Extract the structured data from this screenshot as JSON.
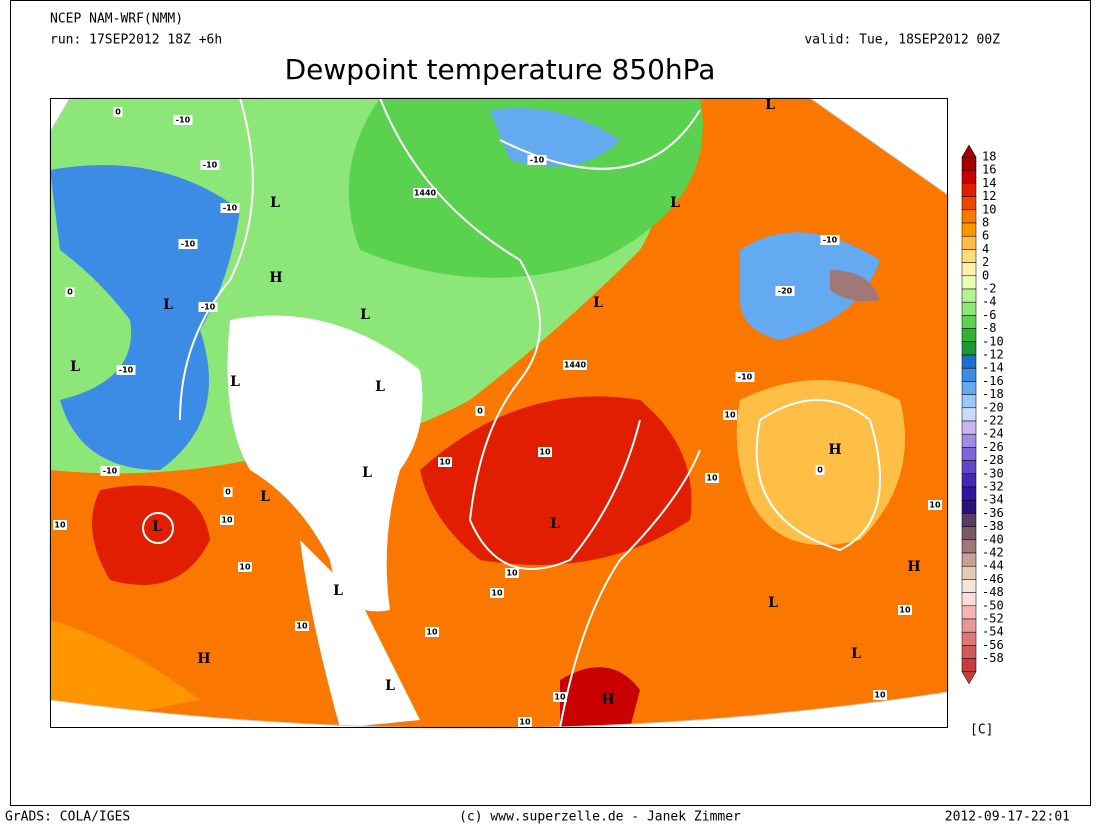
{
  "header": {
    "model": "NCEP NAM-WRF(NMM)",
    "run": "run: 17SEP2012 18Z +6h",
    "valid": "valid: Tue, 18SEP2012 00Z",
    "title": "Dewpoint temperature 850hPa"
  },
  "colorbar": {
    "unit": "[C]",
    "levels": [
      18,
      16,
      14,
      12,
      10,
      8,
      6,
      4,
      2,
      0,
      -2,
      -4,
      -6,
      -8,
      -10,
      -12,
      -14,
      -16,
      -18,
      -20,
      -22,
      -24,
      -26,
      -28,
      -30,
      -32,
      -34,
      -36,
      -38,
      -40,
      -42,
      -44,
      -46,
      -48,
      -50,
      -52,
      -54,
      -56,
      -58
    ],
    "colors": [
      "#a50000",
      "#c80000",
      "#e11e00",
      "#f04600",
      "#fa7800",
      "#ff9600",
      "#ffbe46",
      "#ffdc78",
      "#fff0aa",
      "#e6ffb4",
      "#b4f096",
      "#8ce678",
      "#5ad250",
      "#32b432",
      "#1e9632",
      "#1e6ed2",
      "#3c8ce6",
      "#64aaf0",
      "#96c8fa",
      "#c8dcfa",
      "#c8b4f0",
      "#a08ce6",
      "#8264dc",
      "#6446c8",
      "#4628b4",
      "#3214a0",
      "#281478",
      "#5a3c64",
      "#785a64",
      "#a07878",
      "#c8a096",
      "#e6c8b4",
      "#f5e6dc",
      "#fadcdc",
      "#f5b4b4",
      "#eb9696",
      "#e17878",
      "#d25a5a",
      "#c83c3c"
    ]
  },
  "map": {
    "pressure_centers": [
      "L",
      "L",
      "H",
      "L",
      "L",
      "L",
      "L",
      "L",
      "L",
      "L",
      "H",
      "L",
      "L",
      "L",
      "L",
      "H",
      "L",
      "L",
      "H",
      "L",
      "L",
      "H"
    ],
    "contour_labels": [
      "1440",
      "1440",
      "-10",
      "-10",
      "-10",
      "-10",
      "-10",
      "-10",
      "-10",
      "-10",
      "-10",
      "-10",
      "-20",
      "0",
      "0",
      "0",
      "0",
      "0",
      "10",
      "10",
      "10",
      "10",
      "10",
      "10",
      "10",
      "10",
      "10",
      "10",
      "10",
      "10",
      "10",
      "10",
      "10",
      "10"
    ]
  },
  "footer": {
    "left": "GrADS: COLA/IGES",
    "center": "(c) www.superzelle.de - Janek Zimmer",
    "right": "2012-09-17-22:01"
  }
}
